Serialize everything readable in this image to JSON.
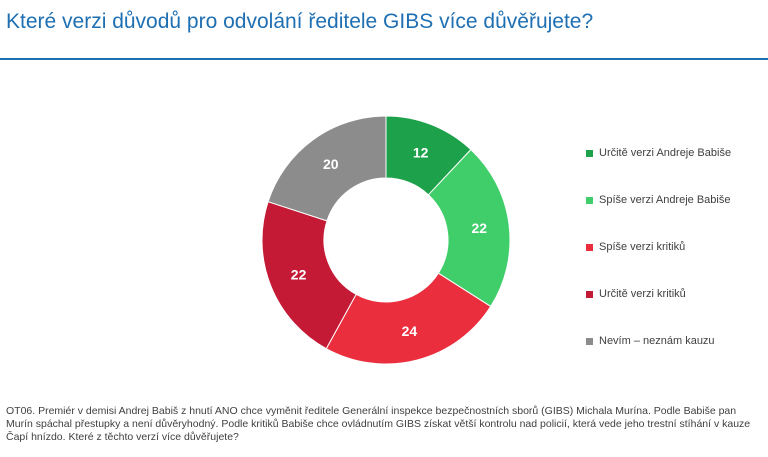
{
  "header": {
    "title": "Které verzi důvodů pro odvolání ředitele GIBS více důvěřujete?"
  },
  "chart_data": {
    "type": "pie",
    "style": "donut",
    "title": "",
    "categories": [
      "Určitě verzi Andreje Babiše",
      "Spíše verzi Andreje Babiše",
      "Spíše verzi kritiků",
      "Určitě verzi kritiků",
      "Nevím – neznám kauzu"
    ],
    "values": [
      12,
      22,
      24,
      22,
      20
    ],
    "colors": [
      "#1ea14b",
      "#3fce69",
      "#ea2e3e",
      "#c41a35",
      "#8c8c8c"
    ],
    "legend_position": "right"
  },
  "footnote": "OT06. Premiér v demisi Andrej Babiš z hnutí ANO chce vyměnit ředitele Generální inspekce bezpečnostních sborů (GIBS) Michala Murína. Podle Babiše pan Murín spáchal přestupky a není důvěryhodný. Podle kritiků Babiše chce ovládnutím GIBS získat větší kontrolu nad policií, která vede jeho trestní stíhání v kauze Čapí hnízdo. Které z těchto verzí více důvěřujete?"
}
